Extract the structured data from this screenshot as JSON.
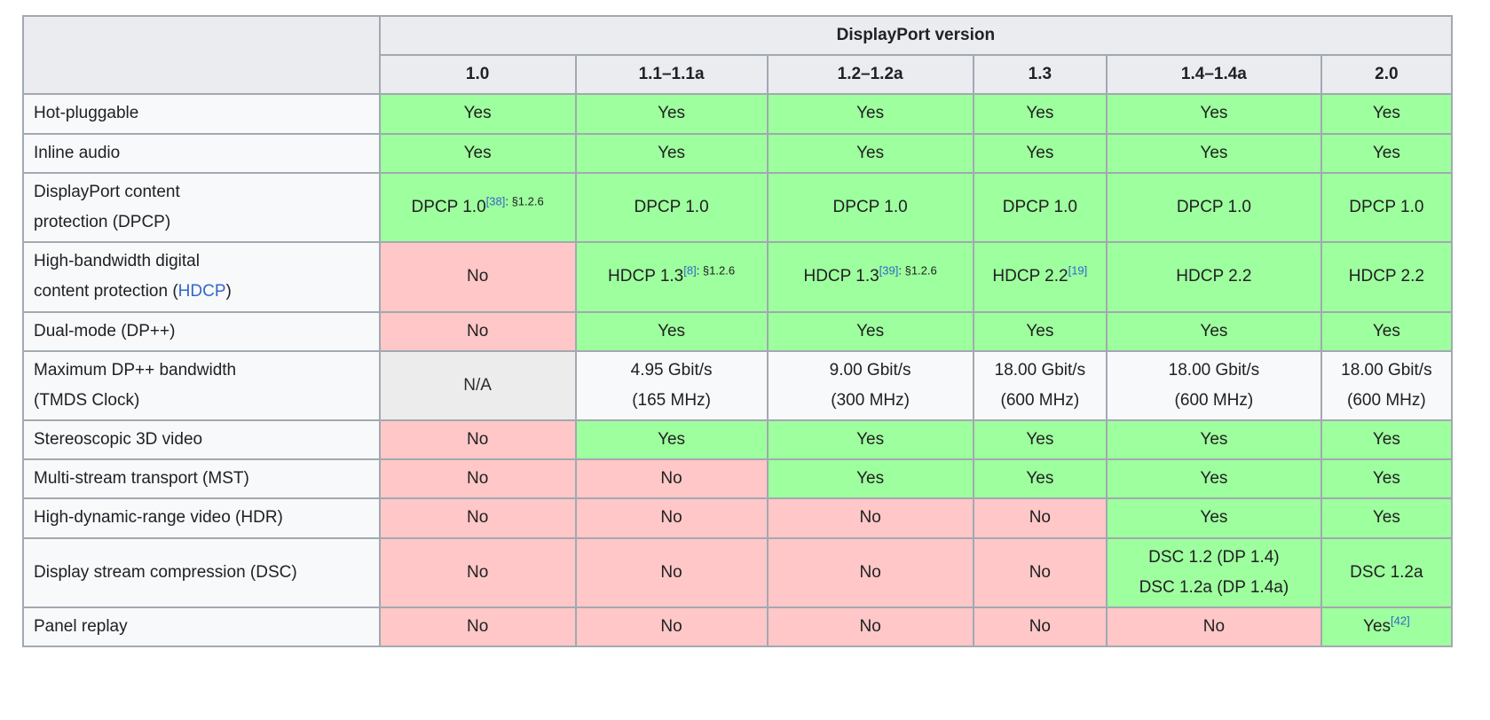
{
  "colors": {
    "yes_cell": "#9eff9e",
    "no_cell": "#ffc7c7",
    "na_cell": "#ececec",
    "header_bg": "#eaecf0",
    "row_bg": "#f8f9fa",
    "border": "#a2a9b1",
    "link": "#3366cc",
    "text": "#202122"
  },
  "table": {
    "title": "DisplayPort version",
    "versions": [
      "1.0",
      "1.1–1.1a",
      "1.2–1.2a",
      "1.3",
      "1.4–1.4a",
      "2.0"
    ],
    "rows": [
      {
        "label": "Hot-pluggable",
        "cells": [
          {
            "t": "Yes",
            "type": "yes"
          },
          {
            "t": "Yes",
            "type": "yes"
          },
          {
            "t": "Yes",
            "type": "yes"
          },
          {
            "t": "Yes",
            "type": "yes"
          },
          {
            "t": "Yes",
            "type": "yes"
          },
          {
            "t": "Yes",
            "type": "yes"
          }
        ]
      },
      {
        "label": "Inline audio",
        "cells": [
          {
            "t": "Yes",
            "type": "yes"
          },
          {
            "t": "Yes",
            "type": "yes"
          },
          {
            "t": "Yes",
            "type": "yes"
          },
          {
            "t": "Yes",
            "type": "yes"
          },
          {
            "t": "Yes",
            "type": "yes"
          },
          {
            "t": "Yes",
            "type": "yes"
          }
        ]
      },
      {
        "label": "DisplayPort content\nprotection (DPCP)",
        "cells": [
          {
            "t": "DPCP 1.0",
            "ref": "[38]",
            "note": ": §1.2.6",
            "type": "yes"
          },
          {
            "t": "DPCP 1.0",
            "type": "yes"
          },
          {
            "t": "DPCP 1.0",
            "type": "yes"
          },
          {
            "t": "DPCP 1.0",
            "type": "yes"
          },
          {
            "t": "DPCP 1.0",
            "type": "yes"
          },
          {
            "t": "DPCP 1.0",
            "type": "yes"
          }
        ]
      },
      {
        "label_prefix": "High-bandwidth digital\ncontent protection (",
        "label_link": "HDCP",
        "label_suffix": ")",
        "cells": [
          {
            "t": "No",
            "type": "no"
          },
          {
            "t": "HDCP 1.3",
            "ref": "[8]",
            "note": ": §1.2.6",
            "type": "yes"
          },
          {
            "t": "HDCP 1.3",
            "ref": "[39]",
            "note": ": §1.2.6",
            "type": "yes"
          },
          {
            "t": "HDCP 2.2",
            "ref": "[19]",
            "type": "yes"
          },
          {
            "t": "HDCP 2.2",
            "type": "yes"
          },
          {
            "t": "HDCP 2.2",
            "type": "yes"
          }
        ]
      },
      {
        "label": "Dual-mode (DP++)",
        "cells": [
          {
            "t": "No",
            "type": "no"
          },
          {
            "t": "Yes",
            "type": "yes"
          },
          {
            "t": "Yes",
            "type": "yes"
          },
          {
            "t": "Yes",
            "type": "yes"
          },
          {
            "t": "Yes",
            "type": "yes"
          },
          {
            "t": "Yes",
            "type": "yes"
          }
        ]
      },
      {
        "label": "Maximum DP++ bandwidth\n(TMDS Clock)",
        "cells": [
          {
            "t": "N/A",
            "type": "na"
          },
          {
            "t": "4.95 Gbit/s\n(165 MHz)",
            "type": "plain"
          },
          {
            "t": "9.00 Gbit/s\n(300 MHz)",
            "type": "plain"
          },
          {
            "t": "18.00 Gbit/s\n(600 MHz)",
            "type": "plain"
          },
          {
            "t": "18.00 Gbit/s\n(600 MHz)",
            "type": "plain"
          },
          {
            "t": "18.00 Gbit/s\n(600 MHz)",
            "type": "plain"
          }
        ]
      },
      {
        "label": "Stereoscopic 3D video",
        "cells": [
          {
            "t": "No",
            "type": "no"
          },
          {
            "t": "Yes",
            "type": "yes"
          },
          {
            "t": "Yes",
            "type": "yes"
          },
          {
            "t": "Yes",
            "type": "yes"
          },
          {
            "t": "Yes",
            "type": "yes"
          },
          {
            "t": "Yes",
            "type": "yes"
          }
        ]
      },
      {
        "label": "Multi-stream transport (MST)",
        "cells": [
          {
            "t": "No",
            "type": "no"
          },
          {
            "t": "No",
            "type": "no"
          },
          {
            "t": "Yes",
            "type": "yes"
          },
          {
            "t": "Yes",
            "type": "yes"
          },
          {
            "t": "Yes",
            "type": "yes"
          },
          {
            "t": "Yes",
            "type": "yes"
          }
        ]
      },
      {
        "label": "High-dynamic-range video (HDR)",
        "cells": [
          {
            "t": "No",
            "type": "no"
          },
          {
            "t": "No",
            "type": "no"
          },
          {
            "t": "No",
            "type": "no"
          },
          {
            "t": "No",
            "type": "no"
          },
          {
            "t": "Yes",
            "type": "yes"
          },
          {
            "t": "Yes",
            "type": "yes"
          }
        ]
      },
      {
        "label": "Display stream compression (DSC)",
        "cells": [
          {
            "t": "No",
            "type": "no"
          },
          {
            "t": "No",
            "type": "no"
          },
          {
            "t": "No",
            "type": "no"
          },
          {
            "t": "No",
            "type": "no"
          },
          {
            "t": "DSC 1.2 (DP 1.4)\nDSC 1.2a (DP 1.4a)",
            "type": "yes"
          },
          {
            "t": "DSC 1.2a",
            "type": "yes"
          }
        ]
      },
      {
        "label": "Panel replay",
        "cells": [
          {
            "t": "No",
            "type": "no"
          },
          {
            "t": "No",
            "type": "no"
          },
          {
            "t": "No",
            "type": "no"
          },
          {
            "t": "No",
            "type": "no"
          },
          {
            "t": "No",
            "type": "no"
          },
          {
            "t": "Yes",
            "ref": "[42]",
            "type": "yes"
          }
        ]
      }
    ]
  }
}
